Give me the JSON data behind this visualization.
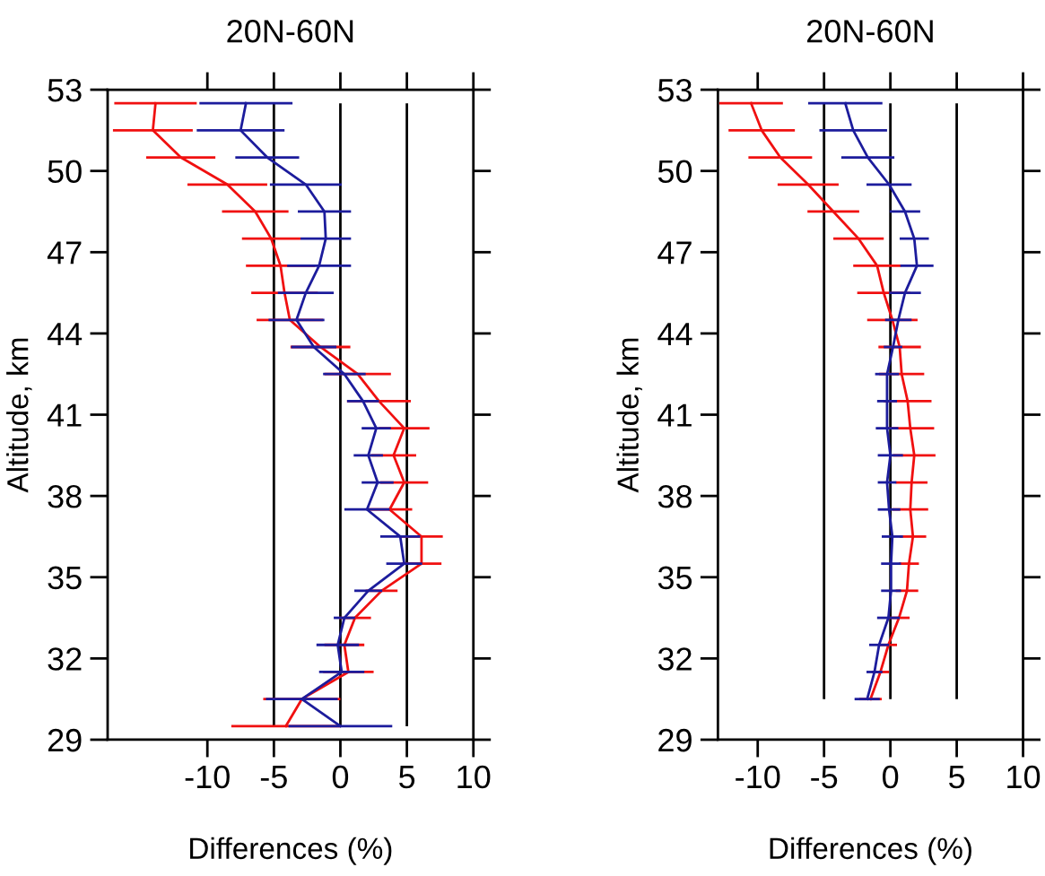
{
  "chart_data": [
    {
      "type": "line",
      "title": "20N-60N",
      "xlabel": "Differences (%)",
      "ylabel": "Altitude, km",
      "xlim": [
        -17.5,
        10
      ],
      "xticks": [
        -10,
        -5,
        0,
        5,
        10
      ],
      "ylim": [
        29,
        53
      ],
      "yticks": [
        29,
        32,
        35,
        38,
        41,
        44,
        47,
        50,
        53
      ],
      "grid": false,
      "marker": "none",
      "line_style": "solid",
      "ref_lines": [
        {
          "axis": "x",
          "value": -5,
          "color": "#000000"
        },
        {
          "axis": "x",
          "value": 0,
          "color": "#000000"
        },
        {
          "axis": "x",
          "value": 5,
          "color": "#000000"
        }
      ],
      "series": [
        {
          "color": "#f01010",
          "x": [
            -13.9,
            -14.1,
            -12.0,
            -8.5,
            -6.4,
            -5.2,
            -4.5,
            -4.2,
            -3.8,
            -1.5,
            1.3,
            2.9,
            4.8,
            4.0,
            4.8,
            3.7,
            6.1,
            6.1,
            3.1,
            1.1,
            0.3,
            0.6,
            -2.9,
            -4.1
          ],
          "values": [
            52.5,
            51.5,
            50.5,
            49.5,
            48.5,
            47.5,
            46.5,
            45.5,
            44.5,
            43.5,
            42.5,
            41.5,
            40.5,
            39.5,
            38.5,
            37.5,
            36.5,
            35.5,
            34.5,
            33.5,
            32.5,
            31.5,
            30.5,
            29.5
          ],
          "xerrors": [
            3.1,
            3.0,
            2.6,
            3.0,
            2.5,
            2.2,
            2.6,
            2.5,
            2.5,
            2.25,
            2.5,
            2.4,
            1.9,
            1.7,
            1.8,
            1.7,
            1.6,
            1.5,
            1.2,
            1.2,
            1.5,
            1.9,
            2.9,
            4.1
          ]
        },
        {
          "color": "#1c1c9c",
          "x": [
            -7.1,
            -7.5,
            -5.5,
            -2.6,
            -1.2,
            -1.1,
            -1.6,
            -2.6,
            -3.3,
            -2.0,
            0.3,
            1.7,
            2.7,
            2.1,
            2.8,
            2.0,
            4.5,
            4.8,
            2.1,
            0.3,
            -0.2,
            0.1,
            -2.9,
            0.0
          ],
          "values": [
            52.5,
            51.5,
            50.5,
            49.5,
            48.5,
            47.5,
            46.5,
            45.5,
            44.5,
            43.5,
            42.5,
            41.5,
            40.5,
            39.5,
            38.5,
            37.5,
            36.5,
            35.5,
            34.5,
            33.5,
            32.5,
            31.5,
            30.5,
            29.5
          ],
          "xerrors": [
            3.5,
            3.3,
            2.4,
            2.7,
            2.0,
            1.9,
            2.4,
            2.1,
            2.1,
            1.7,
            1.6,
            1.2,
            1.1,
            1.1,
            1.2,
            1.7,
            1.5,
            1.35,
            1.05,
            0.8,
            1.6,
            1.7,
            2.7,
            3.9
          ]
        }
      ]
    },
    {
      "type": "line",
      "title": "20N-60N",
      "xlabel": "Differences (%)",
      "ylabel": "Altitude, km",
      "xlim": [
        -13,
        10
      ],
      "xticks": [
        -10,
        -5,
        0,
        5,
        10
      ],
      "ylim": [
        29,
        53
      ],
      "yticks": [
        29,
        32,
        35,
        38,
        41,
        44,
        47,
        50,
        53
      ],
      "grid": false,
      "marker": "none",
      "line_style": "solid",
      "ref_lines": [
        {
          "axis": "x",
          "value": -5,
          "color": "#000000"
        },
        {
          "axis": "x",
          "value": 0,
          "color": "#000000"
        },
        {
          "axis": "x",
          "value": 5,
          "color": "#000000"
        }
      ],
      "series": [
        {
          "color": "#f01010",
          "x": [
            -10.5,
            -9.7,
            -8.3,
            -6.2,
            -4.3,
            -2.4,
            -1.0,
            -0.5,
            0.15,
            0.7,
            0.85,
            1.3,
            1.5,
            1.8,
            1.6,
            1.5,
            1.7,
            1.4,
            1.25,
            0.65,
            -0.15,
            -0.75,
            -1.5
          ],
          "values": [
            52.5,
            51.5,
            50.5,
            49.5,
            48.5,
            47.5,
            46.5,
            45.5,
            44.5,
            43.5,
            42.5,
            41.5,
            40.5,
            39.5,
            38.5,
            37.5,
            36.5,
            35.5,
            34.5,
            33.5,
            32.5,
            31.5,
            30.5
          ],
          "xerrors": [
            2.4,
            2.5,
            2.4,
            2.3,
            1.95,
            1.9,
            1.8,
            2.0,
            1.9,
            1.6,
            1.7,
            1.8,
            1.8,
            1.6,
            1.2,
            1.35,
            1.0,
            0.75,
            0.85,
            0.8,
            0.65,
            0.65,
            0.85
          ]
        },
        {
          "color": "#1c1c9c",
          "x": [
            -3.4,
            -2.8,
            -1.7,
            -0.1,
            1.1,
            1.8,
            2.0,
            1.1,
            0.6,
            0.2,
            -0.25,
            -0.25,
            -0.25,
            0.0,
            -0.25,
            -0.1,
            0.15,
            0.05,
            0.05,
            -0.15,
            -0.85,
            -1.2,
            -1.75
          ],
          "values": [
            52.5,
            51.5,
            50.5,
            49.5,
            48.5,
            47.5,
            46.5,
            45.5,
            44.5,
            43.5,
            42.5,
            41.5,
            40.5,
            39.5,
            38.5,
            37.5,
            36.5,
            35.5,
            34.5,
            33.5,
            32.5,
            31.5,
            30.5
          ],
          "xerrors": [
            2.8,
            2.55,
            2.0,
            1.7,
            1.15,
            1.1,
            1.25,
            1.2,
            1.0,
            0.7,
            0.9,
            0.75,
            0.85,
            0.95,
            0.7,
            0.85,
            0.8,
            0.75,
            0.75,
            0.85,
            0.75,
            0.6,
            0.95
          ]
        }
      ]
    }
  ]
}
